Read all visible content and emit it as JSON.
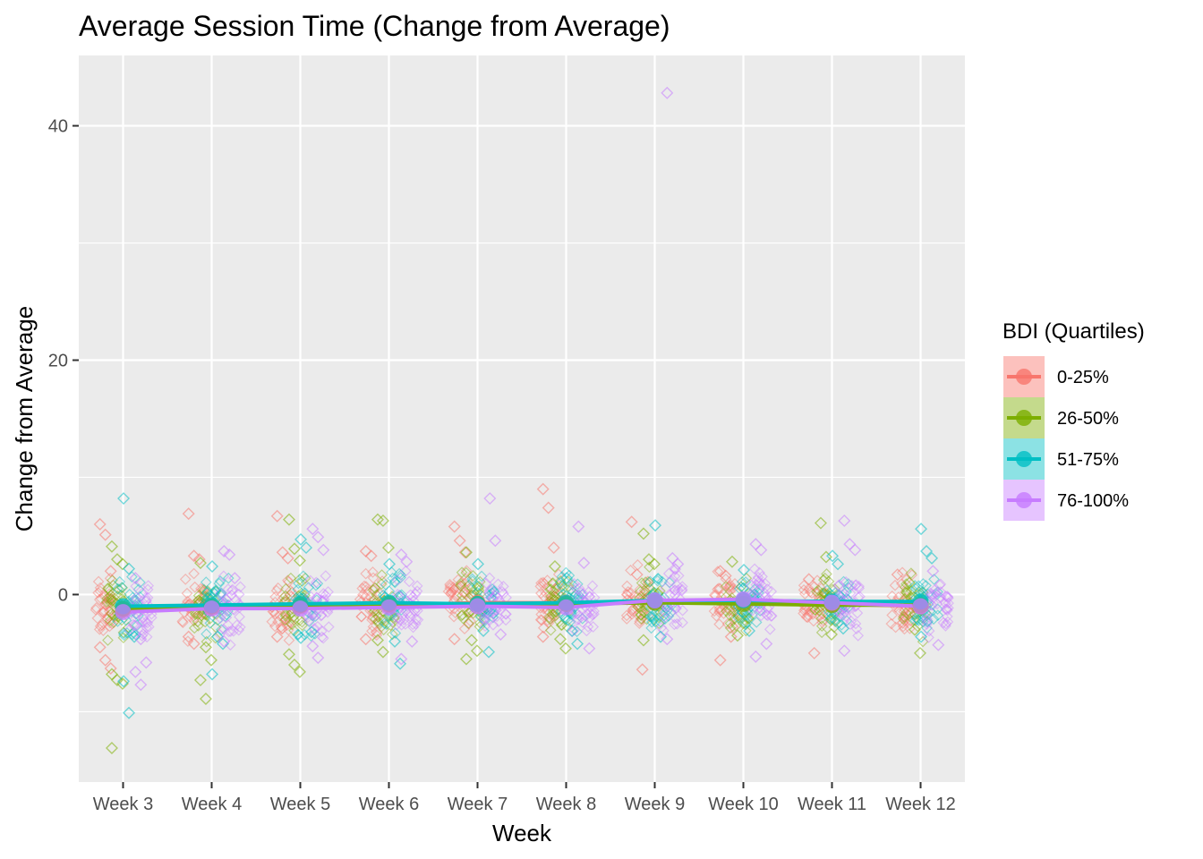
{
  "chart_data": {
    "type": "line",
    "title": "Average Session Time (Change from Average)",
    "xlabel": "Week",
    "ylabel": "Change from Average",
    "categories": [
      "Week 3",
      "Week 4",
      "Week 5",
      "Week 6",
      "Week 7",
      "Week 8",
      "Week 9",
      "Week 10",
      "Week 11",
      "Week 12"
    ],
    "ylim": [
      -16,
      46
    ],
    "yticks": [
      0,
      20,
      40
    ],
    "grid": true,
    "legend": {
      "title": "BDI (Quartiles)",
      "position": "right",
      "entries": [
        "0-25%",
        "26-50%",
        "51-75%",
        "76-100%"
      ]
    },
    "series": [
      {
        "name": "0-25%",
        "color": "#F8766D",
        "values": [
          -1.3,
          -1.1,
          -1.0,
          -0.9,
          -0.7,
          -0.7,
          -0.6,
          -0.6,
          -0.8,
          -1.0
        ]
      },
      {
        "name": "26-50%",
        "color": "#7CAE00",
        "values": [
          -1.2,
          -1.0,
          -0.9,
          -0.8,
          -0.8,
          -0.8,
          -0.7,
          -0.8,
          -0.9,
          -0.9
        ]
      },
      {
        "name": "51-75%",
        "color": "#00BFC4",
        "values": [
          -1.0,
          -0.9,
          -0.8,
          -0.7,
          -0.8,
          -0.7,
          -0.5,
          -0.5,
          -0.6,
          -0.6
        ]
      },
      {
        "name": "76-100%",
        "color": "#C77CFF",
        "values": [
          -1.5,
          -1.2,
          -1.2,
          -1.1,
          -1.0,
          -1.1,
          -0.5,
          -0.4,
          -0.7,
          -1.0
        ]
      }
    ],
    "outliers": [
      {
        "category": "Week 3",
        "series": "0-25%",
        "values": [
          6.0,
          5.1,
          2.0,
          -4.5,
          -5.6,
          -6.3
        ]
      },
      {
        "category": "Week 3",
        "series": "26-50%",
        "values": [
          4.1,
          3.0,
          2.6,
          -6.8,
          -7.3,
          -7.6,
          -13.1
        ]
      },
      {
        "category": "Week 3",
        "series": "51-75%",
        "values": [
          8.2,
          2.2,
          -3.6,
          -7.4,
          -10.1
        ]
      },
      {
        "category": "Week 3",
        "series": "76-100%",
        "values": [
          1.4,
          -3.8,
          -5.8,
          -6.6,
          -7.7
        ]
      },
      {
        "category": "Week 4",
        "series": "0-25%",
        "values": [
          6.9,
          3.3,
          3.0,
          -3.6,
          -4.2
        ]
      },
      {
        "category": "Week 4",
        "series": "26-50%",
        "values": [
          2.7,
          -4.5,
          -5.6,
          -7.3,
          -8.9
        ]
      },
      {
        "category": "Week 4",
        "series": "51-75%",
        "values": [
          2.4,
          -3.6,
          -4.2,
          -6.8
        ]
      },
      {
        "category": "Week 4",
        "series": "76-100%",
        "values": [
          3.7,
          3.4,
          1.4,
          -4.0
        ]
      },
      {
        "category": "Week 5",
        "series": "0-25%",
        "values": [
          6.7,
          3.6,
          3.1,
          -3.6
        ]
      },
      {
        "category": "Week 5",
        "series": "26-50%",
        "values": [
          6.4,
          3.9,
          2.9,
          -5.1,
          -6.0,
          -6.6
        ]
      },
      {
        "category": "Week 5",
        "series": "51-75%",
        "values": [
          4.7,
          4.0,
          -3.2,
          -3.7
        ]
      },
      {
        "category": "Week 5",
        "series": "76-100%",
        "values": [
          5.6,
          4.9,
          3.8,
          -4.4,
          -5.4
        ]
      },
      {
        "category": "Week 6",
        "series": "0-25%",
        "values": [
          3.7,
          3.3,
          -3.2,
          -3.8
        ]
      },
      {
        "category": "Week 6",
        "series": "26-50%",
        "values": [
          6.4,
          6.3,
          4.0,
          -3.9,
          -4.9
        ]
      },
      {
        "category": "Week 6",
        "series": "51-75%",
        "values": [
          2.6,
          -4.0,
          -5.9
        ]
      },
      {
        "category": "Week 6",
        "series": "76-100%",
        "values": [
          3.4,
          2.8,
          -4.0,
          -5.5
        ]
      },
      {
        "category": "Week 7",
        "series": "0-25%",
        "values": [
          5.8,
          4.6,
          3.6,
          -3.8
        ]
      },
      {
        "category": "Week 7",
        "series": "26-50%",
        "values": [
          3.6,
          -3.9,
          -4.8,
          -5.5
        ]
      },
      {
        "category": "Week 7",
        "series": "51-75%",
        "values": [
          2.6,
          -3.1,
          -4.9
        ]
      },
      {
        "category": "Week 7",
        "series": "76-100%",
        "values": [
          8.2,
          4.6,
          -3.4
        ]
      },
      {
        "category": "Week 8",
        "series": "0-25%",
        "values": [
          9.0,
          7.4,
          4.0,
          -3.6
        ]
      },
      {
        "category": "Week 8",
        "series": "26-50%",
        "values": [
          2.4,
          -3.8,
          -4.6
        ]
      },
      {
        "category": "Week 8",
        "series": "51-75%",
        "values": [
          1.4,
          -3.1,
          -4.2
        ]
      },
      {
        "category": "Week 8",
        "series": "76-100%",
        "values": [
          5.8,
          2.7,
          -4.6
        ]
      },
      {
        "category": "Week 9",
        "series": "0-25%",
        "values": [
          6.2,
          1.7,
          -6.4
        ]
      },
      {
        "category": "Week 9",
        "series": "26-50%",
        "values": [
          5.2,
          3.0,
          2.6,
          -3.9
        ]
      },
      {
        "category": "Week 9",
        "series": "51-75%",
        "values": [
          5.9,
          -3.6
        ]
      },
      {
        "category": "Week 9",
        "series": "76-100%",
        "values": [
          42.8,
          3.1,
          2.6,
          -3.8
        ]
      },
      {
        "category": "Week 10",
        "series": "0-25%",
        "values": [
          2.0,
          1.6,
          -3.6,
          -5.6
        ]
      },
      {
        "category": "Week 10",
        "series": "26-50%",
        "values": [
          2.8,
          -3.5
        ]
      },
      {
        "category": "Week 10",
        "series": "51-75%",
        "values": [
          2.1,
          -3.1
        ]
      },
      {
        "category": "Week 10",
        "series": "76-100%",
        "values": [
          4.3,
          3.8,
          -4.2,
          -5.3
        ]
      },
      {
        "category": "Week 11",
        "series": "0-25%",
        "values": [
          1.3,
          -5.0
        ]
      },
      {
        "category": "Week 11",
        "series": "26-50%",
        "values": [
          6.1,
          3.2,
          -3.4
        ]
      },
      {
        "category": "Week 11",
        "series": "51-75%",
        "values": [
          3.3,
          2.6,
          -2.9
        ]
      },
      {
        "category": "Week 11",
        "series": "76-100%",
        "values": [
          6.3,
          4.3,
          3.8,
          -4.8
        ]
      },
      {
        "category": "Week 12",
        "series": "0-25%",
        "values": [
          1.7,
          -2.4
        ]
      },
      {
        "category": "Week 12",
        "series": "26-50%",
        "values": [
          1.0,
          -3.0,
          -5.0
        ]
      },
      {
        "category": "Week 12",
        "series": "51-75%",
        "values": [
          5.6,
          3.7,
          3.1,
          -3.6
        ]
      },
      {
        "category": "Week 12",
        "series": "76-100%",
        "values": [
          2.0,
          -4.3
        ]
      }
    ]
  }
}
